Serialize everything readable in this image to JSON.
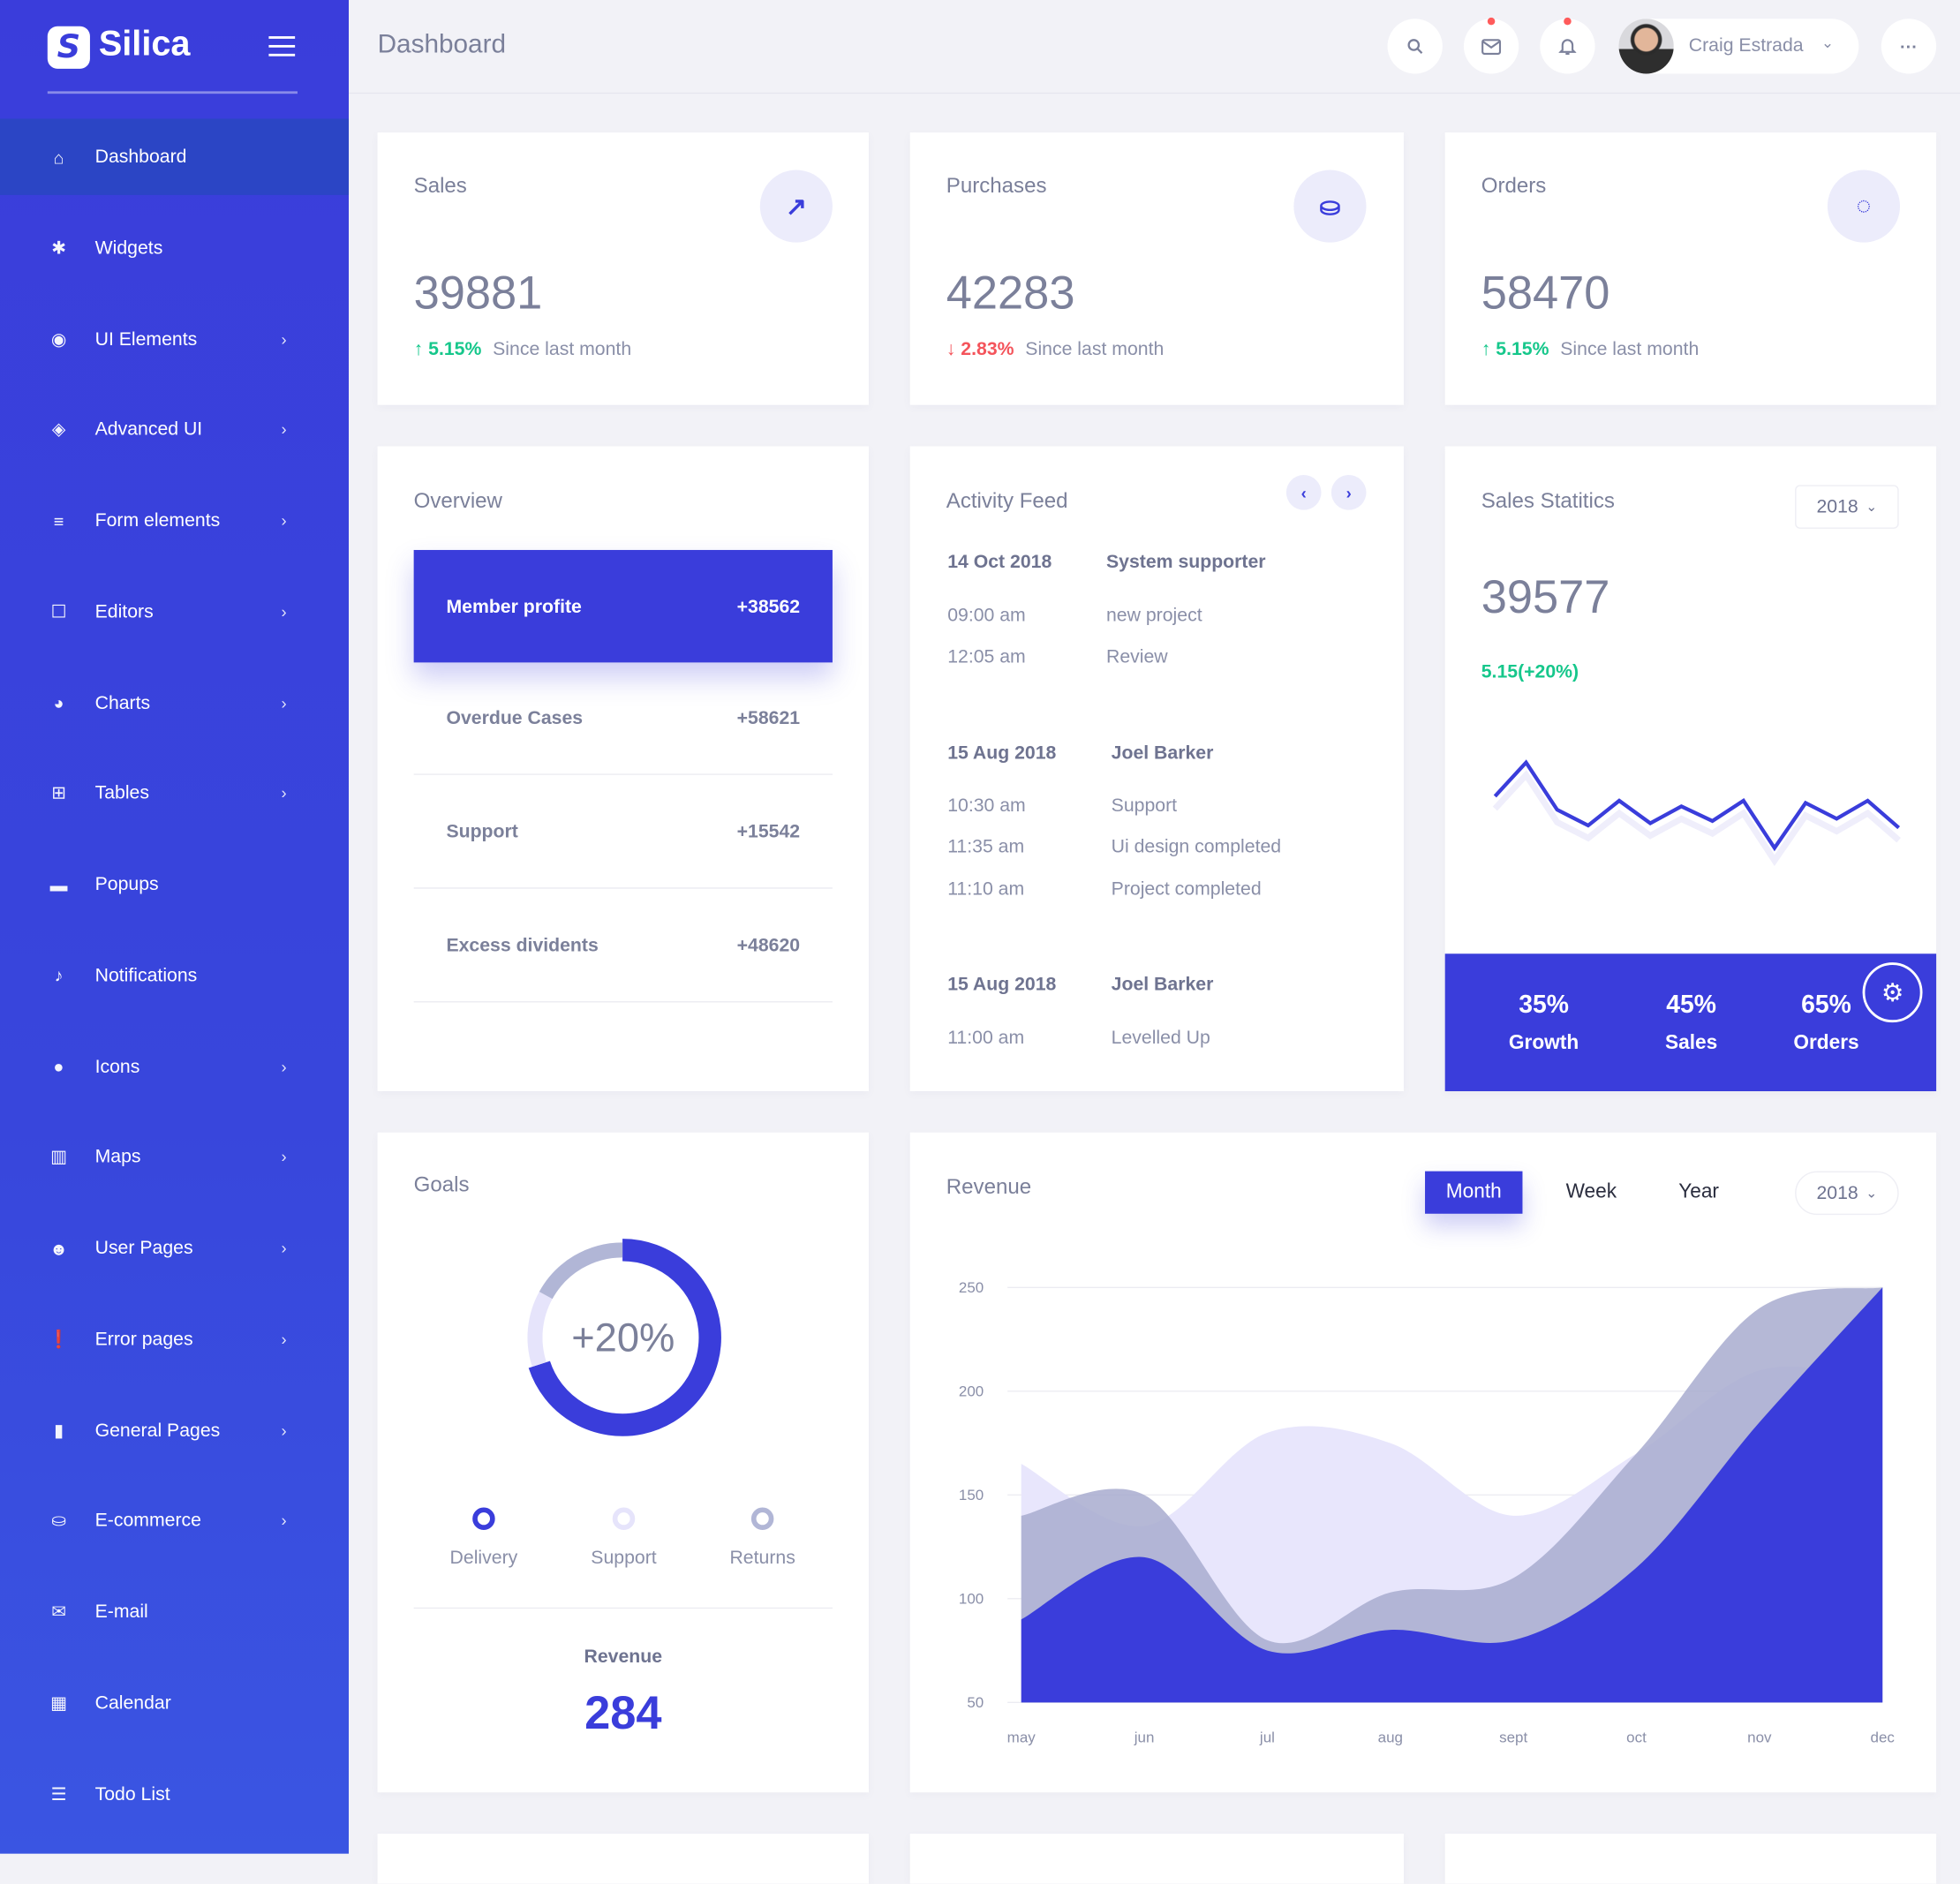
{
  "brand": {
    "name": "Silica",
    "logo_letter": "S"
  },
  "colors": {
    "primary": "#3a3ddb",
    "success": "#16c78b",
    "danger": "#f4545b",
    "text": "#7b809a"
  },
  "sidebar": {
    "items": [
      {
        "label": "Dashboard",
        "icon": "home-icon",
        "glyph": "⌂",
        "chevron": false,
        "active": true
      },
      {
        "label": "Widgets",
        "icon": "puzzle-icon",
        "glyph": "✱",
        "chevron": false
      },
      {
        "label": "UI Elements",
        "icon": "compass-icon",
        "glyph": "◉",
        "chevron": true
      },
      {
        "label": "Advanced UI",
        "icon": "layers-icon",
        "glyph": "◈",
        "chevron": true
      },
      {
        "label": "Form elements",
        "icon": "list-icon",
        "glyph": "≡",
        "chevron": true
      },
      {
        "label": "Editors",
        "icon": "edit-icon",
        "glyph": "☐",
        "chevron": true
      },
      {
        "label": "Charts",
        "icon": "pie-chart-icon",
        "glyph": "◕",
        "chevron": true
      },
      {
        "label": "Tables",
        "icon": "grid-icon",
        "glyph": "⊞",
        "chevron": true
      },
      {
        "label": "Popups",
        "icon": "popup-icon",
        "glyph": "▬",
        "chevron": false
      },
      {
        "label": "Notifications",
        "icon": "bell-icon",
        "glyph": "♪",
        "chevron": false
      },
      {
        "label": "Icons",
        "icon": "circle-icon",
        "glyph": "●",
        "chevron": true
      },
      {
        "label": "Maps",
        "icon": "map-icon",
        "glyph": "▥",
        "chevron": true
      },
      {
        "label": "User Pages",
        "icon": "user-icon",
        "glyph": "☻",
        "chevron": true
      },
      {
        "label": "Error pages",
        "icon": "alert-icon",
        "glyph": "❗",
        "chevron": true
      },
      {
        "label": "General Pages",
        "icon": "file-icon",
        "glyph": "▮",
        "chevron": true
      },
      {
        "label": "E-commerce",
        "icon": "basket-icon",
        "glyph": "⛀",
        "chevron": true
      },
      {
        "label": "E-mail",
        "icon": "mail-icon",
        "glyph": "✉",
        "chevron": false
      },
      {
        "label": "Calendar",
        "icon": "calendar-icon",
        "glyph": "▦",
        "chevron": false
      },
      {
        "label": "Todo List",
        "icon": "checklist-icon",
        "glyph": "☰",
        "chevron": false
      }
    ]
  },
  "header": {
    "title": "Dashboard",
    "user_name": "Craig Estrada",
    "more": "···"
  },
  "stats": [
    {
      "title": "Sales",
      "value": "39881",
      "change": "5.15%",
      "direction": "up",
      "note": "Since last month",
      "icon": "arrow-up-right-icon",
      "glyph": "↗"
    },
    {
      "title": "Purchases",
      "value": "42283",
      "change": "2.83%",
      "direction": "down",
      "note": "Since last month",
      "icon": "basket-icon",
      "glyph": "⛀"
    },
    {
      "title": "Orders",
      "value": "58470",
      "change": "5.15%",
      "direction": "up",
      "note": "Since last month",
      "icon": "refresh-icon",
      "glyph": "◌"
    }
  ],
  "overview": {
    "title": "Overview",
    "rows": [
      {
        "label": "Member profite",
        "value": "+38562"
      },
      {
        "label": "Overdue Cases",
        "value": "+58621"
      },
      {
        "label": "Support",
        "value": "+15542"
      },
      {
        "label": "Excess dividents",
        "value": "+48620"
      }
    ]
  },
  "activity": {
    "title": "Activity Feed",
    "groups": [
      {
        "date": "14 Oct 2018",
        "who": "System supporter",
        "items": [
          {
            "time": "09:00 am",
            "text": "new project"
          },
          {
            "time": "12:05 am",
            "text": "Review"
          }
        ]
      },
      {
        "date": "15 Aug 2018",
        "who": "Joel Barker",
        "items": [
          {
            "time": "10:30 am",
            "text": "Support"
          },
          {
            "time": "11:35 am",
            "text": "Ui design completed"
          },
          {
            "time": "11:10 am",
            "text": "Project completed"
          }
        ]
      },
      {
        "date": "15 Aug 2018",
        "who": "Joel Barker",
        "items": [
          {
            "time": "11:00 am",
            "text": "Levelled Up"
          }
        ]
      }
    ]
  },
  "sales_statistics": {
    "title": "Sales Statitics",
    "year": "2018",
    "value": "39577",
    "change": "5.15(+20%)",
    "sparkline": [
      60,
      90,
      48,
      34,
      56,
      36,
      51,
      38,
      56,
      14,
      54,
      40,
      56,
      32
    ],
    "footer": [
      {
        "value": "35%",
        "label": "Growth"
      },
      {
        "value": "45%",
        "label": "Sales"
      },
      {
        "value": "65%",
        "label": "Orders"
      }
    ]
  },
  "goals": {
    "title": "Goals",
    "center_label": "+20%",
    "segments": [
      {
        "name": "Delivery",
        "percent": 70,
        "color": "#3a3ddb"
      },
      {
        "name": "Support",
        "percent": 13,
        "color": "#e6e4fb"
      },
      {
        "name": "Returns",
        "percent": 17,
        "color": "#b1b6d6"
      }
    ],
    "revenue_label": "Revenue",
    "revenue_value": "284"
  },
  "revenue": {
    "title": "Revenue",
    "tabs": [
      "Month",
      "Week",
      "Year"
    ],
    "active_tab": "Month",
    "year": "2018"
  },
  "chart_data": {
    "type": "area",
    "title": "Revenue",
    "categories": [
      "may",
      "jun",
      "jul",
      "aug",
      "sept",
      "oct",
      "nov",
      "dec"
    ],
    "ylim": [
      50,
      250
    ],
    "yticks": [
      50,
      100,
      150,
      200,
      250
    ],
    "grid": true,
    "series": [
      {
        "name": "series-light",
        "color": "#e8e6fc",
        "values": [
          165,
          135,
          180,
          175,
          140,
          170,
          210,
          205
        ]
      },
      {
        "name": "series-gray",
        "color": "#a8accf",
        "values": [
          140,
          150,
          80,
          103,
          110,
          170,
          240,
          250
        ]
      },
      {
        "name": "series-primary",
        "color": "#3a3ddb",
        "values": [
          90,
          120,
          75,
          85,
          80,
          115,
          185,
          250
        ]
      }
    ]
  }
}
